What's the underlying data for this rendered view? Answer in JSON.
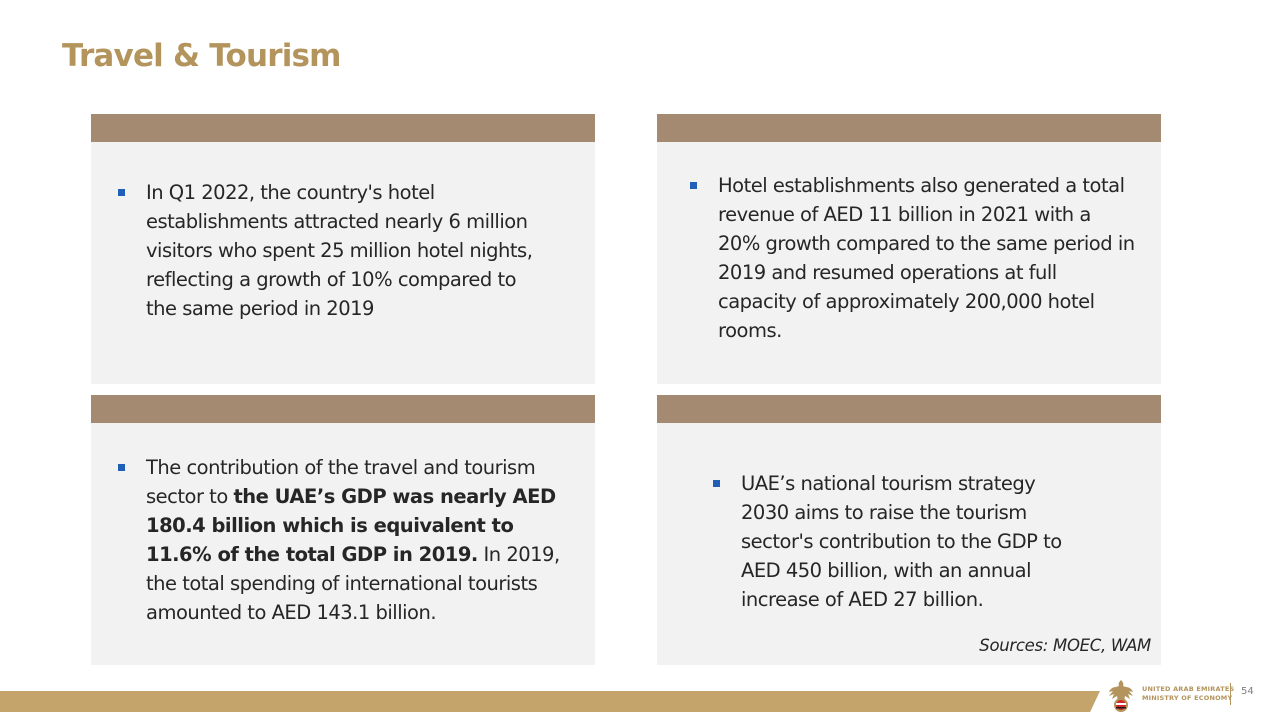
{
  "slide": {
    "title": "Travel & Tourism",
    "page_number": "54",
    "sources": "Sources:  MOEC, WAM"
  },
  "cards": [
    {
      "text_plain": "In Q1 2022, the country's hotel establishments attracted nearly 6 million visitors who spent 25 million hotel nights, reflecting a growth of 10% compared to the same period in 2019"
    },
    {
      "text_plain": "Hotel establishments also generated a total revenue of AED 11 billion in 2021 with a 20% growth compared to the same period in 2019 and resumed operations at full capacity of approximately 200,000 hotel rooms."
    },
    {
      "text_before": "The contribution of the travel and tourism sector to ",
      "text_bold": "the UAE’s GDP was nearly AED 180.4 billion which is equivalent to 11.6% of the total GDP in 2019.",
      "text_after": " In 2019, the total spending of international tourists amounted to AED 143.1 billion."
    },
    {
      "text_plain": "UAE’s national tourism strategy 2030 aims to raise the tourism sector's contribution to the GDP to AED 450 billion, with an annual increase of AED 27 billion."
    }
  ],
  "footer": {
    "ministry_line1": "UNITED ARAB EMIRATES",
    "ministry_line2": "MINISTRY OF ECONOMY",
    "logo_icon": "falcon-emblem-icon"
  },
  "colors": {
    "title": "#b3945c",
    "card_header": "#a38a70",
    "card_body": "#f2f2f2",
    "bullet": "#1f5fb8",
    "footer_bar": "#c4a46a"
  }
}
